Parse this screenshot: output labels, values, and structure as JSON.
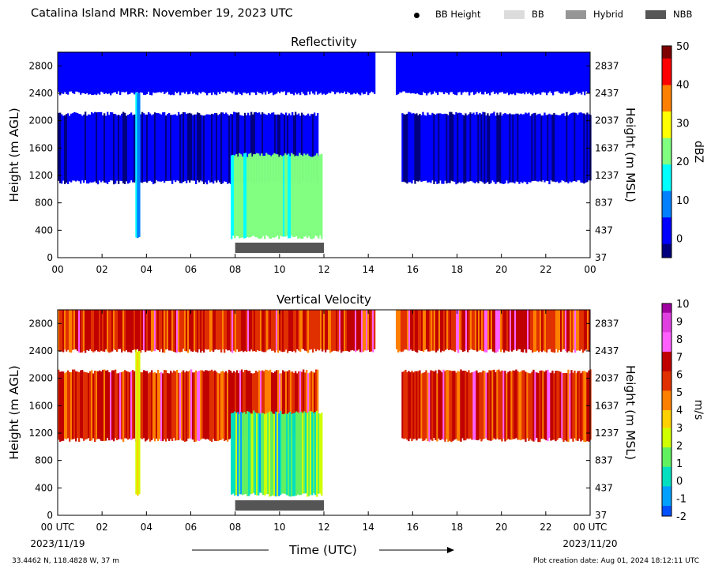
{
  "header": {
    "title": "Catalina Island MRR:  November 19, 2023 UTC",
    "legend": [
      {
        "label": "BB Height",
        "kind": "dot",
        "color": "#000000"
      },
      {
        "label": "BB",
        "kind": "swatch",
        "color": "#dcdcdc"
      },
      {
        "label": "Hybrid",
        "kind": "swatch",
        "color": "#969696"
      },
      {
        "label": "NBB",
        "kind": "swatch",
        "color": "#555555"
      }
    ]
  },
  "chart_data": [
    {
      "type": "heatmap",
      "title": "Reflectivity",
      "ylabel": "Height (m AGL)",
      "ylabel_right": "Height (m MSL)",
      "xlim": [
        0,
        24
      ],
      "ylim": [
        0,
        3000
      ],
      "x_ticks": [
        "00",
        "02",
        "04",
        "06",
        "08",
        "10",
        "12",
        "14",
        "16",
        "18",
        "20",
        "22",
        "00"
      ],
      "y_ticks": [
        0,
        400,
        800,
        1200,
        1600,
        2000,
        2400,
        2800
      ],
      "y_ticks_right": [
        "37",
        "437",
        "837",
        "1237",
        "1637",
        "2037",
        "2437",
        "2837"
      ],
      "colorbar": {
        "label": "dBZ",
        "min": -5,
        "max": 50,
        "ticks": [
          0,
          10,
          20,
          30,
          40,
          50
        ],
        "colors": [
          "#00007f",
          "#0000ff",
          "#0080ff",
          "#00ffff",
          "#80ff80",
          "#ffff00",
          "#ff8000",
          "#ff0000",
          "#7f0000"
        ]
      },
      "echo_layers": [
        {
          "hours": [
            0,
            24
          ],
          "height_m": [
            2400,
            3000
          ],
          "value": 3,
          "gap_hours": [
            [
              14.3,
              15.2
            ]
          ]
        },
        {
          "hours": [
            0,
            11.7
          ],
          "height_m": [
            1100,
            2100
          ],
          "value": -1,
          "gap_hours": []
        },
        {
          "hours": [
            15.5,
            24
          ],
          "height_m": [
            1100,
            2100
          ],
          "value": -1,
          "gap_hours": []
        },
        {
          "hours": [
            3.5,
            3.65
          ],
          "height_m": [
            300,
            2400
          ],
          "value": 12,
          "gap_hours": []
        },
        {
          "hours": [
            7.8,
            11.9
          ],
          "height_m": [
            300,
            1500
          ],
          "value": 20,
          "gap_hours": []
        }
      ],
      "nbb_period_hours": [
        8,
        12
      ]
    },
    {
      "type": "heatmap",
      "title": "Vertical Velocity",
      "ylabel": "Height (m AGL)",
      "ylabel_right": "Height (m MSL)",
      "xlim": [
        0,
        24
      ],
      "ylim": [
        0,
        3000
      ],
      "x_ticks": [
        "00 UTC",
        "02",
        "04",
        "06",
        "08",
        "10",
        "12",
        "14",
        "16",
        "18",
        "20",
        "22",
        "00 UTC"
      ],
      "x_dates": [
        "2023/11/19",
        "2023/11/20"
      ],
      "y_ticks": [
        0,
        400,
        800,
        1200,
        1600,
        2000,
        2400,
        2800
      ],
      "y_ticks_right": [
        "37",
        "437",
        "837",
        "1237",
        "1637",
        "2037",
        "2437",
        "2837"
      ],
      "colorbar": {
        "label": "m/s",
        "min": -2,
        "max": 10,
        "ticks": [
          -2,
          -1,
          0,
          1,
          2,
          3,
          4,
          5,
          6,
          7,
          8,
          9,
          10
        ],
        "colors": [
          "#0050ff",
          "#00a0ff",
          "#00e0c0",
          "#60f060",
          "#d0ff00",
          "#ffd000",
          "#ff8000",
          "#e03000",
          "#c00000",
          "#ff60ff",
          "#e040e0",
          "#a000a0"
        ]
      },
      "echo_layers": [
        {
          "hours": [
            0,
            24
          ],
          "height_m": [
            2400,
            3000
          ],
          "value": 6,
          "gap_hours": [
            [
              14.3,
              15.2
            ]
          ]
        },
        {
          "hours": [
            0,
            11.7
          ],
          "height_m": [
            1100,
            2100
          ],
          "value": 6,
          "gap_hours": []
        },
        {
          "hours": [
            15.5,
            24
          ],
          "height_m": [
            1100,
            2100
          ],
          "value": 6,
          "gap_hours": []
        },
        {
          "hours": [
            3.5,
            3.65
          ],
          "height_m": [
            300,
            2400
          ],
          "value": 2,
          "gap_hours": []
        },
        {
          "hours": [
            7.8,
            11.9
          ],
          "height_m": [
            300,
            1500
          ],
          "value": 1,
          "gap_hours": []
        }
      ],
      "nbb_period_hours": [
        8,
        12
      ]
    }
  ],
  "footer": {
    "xlabel": "Time (UTC)",
    "location": "33.4462 N, 118.4828 W, 37 m",
    "creation": "Plot creation date: Aug 01, 2024 18:12:11 UTC"
  }
}
